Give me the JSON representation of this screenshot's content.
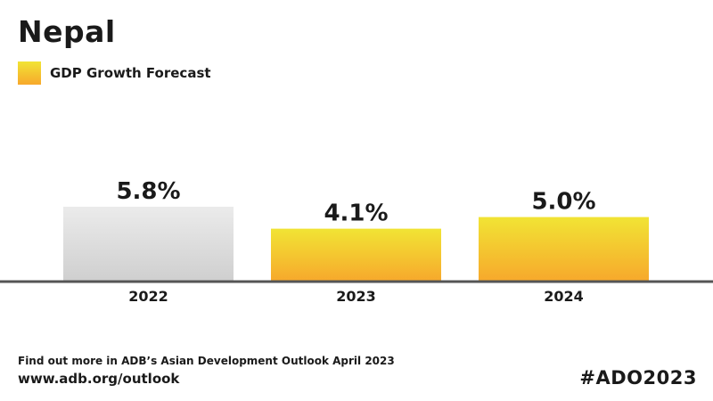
{
  "title": "Nepal",
  "legend": {
    "label": "GDP Growth Forecast"
  },
  "footer": {
    "note": "Find out more in ADB’s Asian Development Outlook April 2023",
    "url": "www.adb.org/outlook",
    "hashtag": "#ADO2023"
  },
  "colors": {
    "actual_top": "#ebebeb",
    "actual_bottom": "#cfcfcf",
    "forecast_top": "#f1e434",
    "forecast_bottom": "#f7a82c",
    "baseline": "#555555"
  },
  "chart_data": {
    "type": "bar",
    "categories": [
      "2022",
      "2023",
      "2024"
    ],
    "values": [
      5.8,
      4.1,
      5.0
    ],
    "data_labels": [
      "5.8%",
      "4.1%",
      "5.0%"
    ],
    "series": [
      {
        "name": "GDP Growth Forecast",
        "values": [
          null,
          4.1,
          5.0
        ]
      }
    ],
    "actual_values": [
      5.8,
      null,
      null
    ],
    "ylim": [
      0,
      5.8
    ],
    "grid": false,
    "legend_position": "top-left"
  }
}
